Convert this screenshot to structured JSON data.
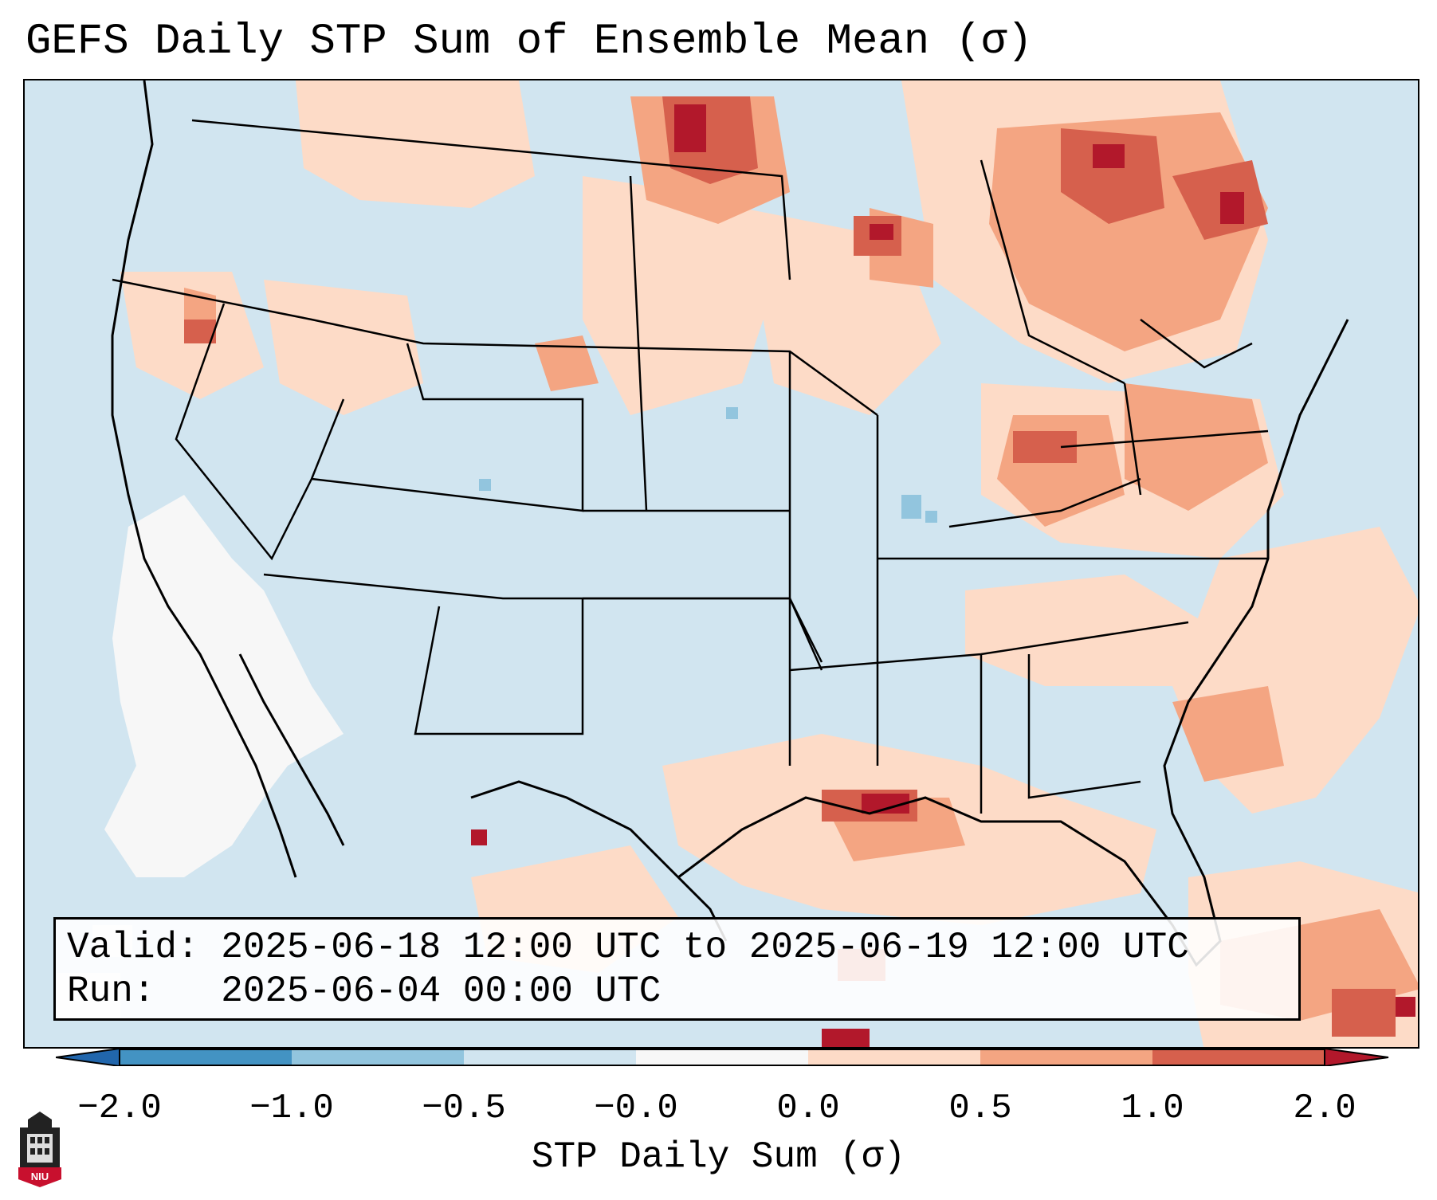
{
  "title": "GEFS Daily STP Sum of Ensemble Mean (σ)",
  "info": {
    "valid": "Valid: 2025-06-18 12:00 UTC to 2025-06-19 12:00 UTC",
    "run": "Run:   2025-06-04 00:00 UTC"
  },
  "colorbar": {
    "label": "STP Daily Sum (σ)",
    "ticks": [
      "−2.0",
      "−1.0",
      "−0.5",
      "−0.0",
      "0.0",
      "0.5",
      "1.0",
      "2.0"
    ],
    "colors": [
      "#4393c3",
      "#92c5de",
      "#d1e5f0",
      "#f7f7f7",
      "#fddbc7",
      "#f4a582",
      "#d6604d"
    ],
    "extend_low_color": "#2166ac",
    "extend_high_color": "#b2182b"
  },
  "logo": {
    "text": "NIU",
    "color": "#c8102e"
  },
  "map": {
    "region": "Contiguous United States, southern Canada, northern Mexico",
    "background_color": "#d1e5f0",
    "features": [
      "state-borders",
      "country-borders",
      "coastlines"
    ]
  }
}
